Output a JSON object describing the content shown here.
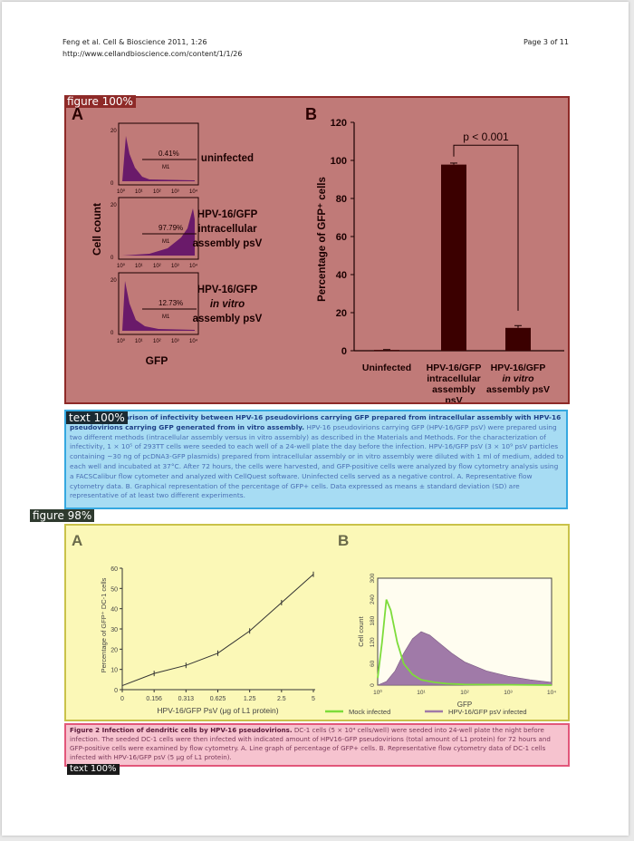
{
  "header": {
    "citation": "Feng et al. Cell & Bioscience 2011, 1:26",
    "url": "http://www.cellandbioscience.com/content/1/1/26",
    "page": "Page 3 of 11"
  },
  "region_labels": {
    "figure1": "figure 100%",
    "text1": "text 100%",
    "figure2": "figure 98%",
    "text2": "text 100%"
  },
  "figure1": {
    "panel_a_letter": "A",
    "panel_b_letter": "B",
    "flow": {
      "ylabel": "Cell count",
      "xlabel": "GFP",
      "ytick": [
        "0",
        "20"
      ],
      "xticks": [
        "10⁰",
        "10¹",
        "10²",
        "10³",
        "10⁴"
      ],
      "gate_label": "M1",
      "histograms": [
        {
          "percent": "0.41%",
          "label_lines": [
            "uninfected"
          ]
        },
        {
          "percent": "97.79%",
          "label_lines": [
            "HPV-16/GFP",
            "intracellular",
            "assembly psV"
          ]
        },
        {
          "percent": "12.73%",
          "label_lines": [
            "HPV-16/GFP",
            "in vitro",
            "assembly psV"
          ]
        }
      ]
    },
    "chart_data": {
      "type": "bar",
      "ylabel": "Percentage of GFP⁺ cells",
      "ylim": [
        0,
        120
      ],
      "yticks": [
        "0",
        "20",
        "40",
        "60",
        "80",
        "100",
        "120"
      ],
      "categories": [
        [
          "Uninfected"
        ],
        [
          "HPV-16/GFP",
          "intracellular",
          "assembly",
          "psV"
        ],
        [
          "HPV-16/GFP",
          "in vitro",
          "assembly psV"
        ]
      ],
      "values": [
        0.4,
        97.8,
        12.0
      ],
      "errors": [
        0.2,
        0.8,
        1.2
      ],
      "annotation": "p < 0.001",
      "bar_color": "#3b0000"
    }
  },
  "text1": {
    "caption_bold": "Figure 1 Comparison of infectivity between HPV-16 pseudovirions carrying GFP prepared from intracellular assembly with HPV-16 pseudovirions carrying GFP generated from in vitro assembly.",
    "caption_body": "HPV-16 pseudovirions carrying GFP (HPV-16/GFP psV) were prepared using two different methods (intracellular assembly versus in vitro assembly) as described in the Materials and Methods. For the characterization of infectivity, 1 × 10⁵ of 293TT cells were seeded to each well of a 24-well plate the day before the infection. HPV-16/GFP psV (3 × 10⁹ psV particles containing ~30 ng of pcDNA3-GFP plasmids) prepared from intracellular assembly or in vitro assembly were diluted with 1 ml of medium, added to each well and incubated at 37°C. After 72 hours, the cells were harvested, and GFP-positive cells were analyzed by flow cytometry analysis using a FACSCalibur flow cytometer and analyzed with CellQuest software. Uninfected cells served as a negative control. A. Representative flow cytometry data. B. Graphical representation of the percentage of GFP+ cells. Data expressed as means ± standard deviation (SD) are representative of at least two different experiments."
  },
  "figure2": {
    "panel_a_letter": "A",
    "panel_b_letter": "B",
    "chart_data": [
      {
        "type": "line",
        "ylabel": "Percentage of GFP⁺ DC-1 cells",
        "xlabel": "HPV-16/GFP PsV (μg of L1 protein)",
        "x_categories": [
          "0",
          "0.156",
          "0.313",
          "0.625",
          "1.25",
          "2.5",
          "5"
        ],
        "yticks": [
          "0",
          "10",
          "20",
          "30",
          "40",
          "50",
          "60"
        ],
        "ylim": [
          0,
          60
        ],
        "values": [
          2,
          8,
          12,
          18,
          29,
          43,
          57
        ]
      },
      {
        "type": "area",
        "ylabel": "Cell count",
        "xlabel": "GFP",
        "yticks": [
          "0",
          "60",
          "120",
          "180",
          "240",
          "300"
        ],
        "xticks": [
          "10⁰",
          "10¹",
          "10²",
          "10³",
          "10⁴"
        ],
        "ylim": [
          0,
          300
        ],
        "series": [
          {
            "name": "Mock infected",
            "color": "#7ddc3a",
            "x": [
              0.0,
              0.1,
              0.2,
              0.3,
              0.45,
              0.6,
              0.8,
              1.0,
              1.3,
              1.6,
              2.0,
              3.0,
              4.0
            ],
            "y": [
              20,
              120,
              240,
              210,
              120,
              60,
              30,
              15,
              8,
              4,
              2,
              1,
              0
            ]
          },
          {
            "name": "HPV-16/GFP psV infected",
            "color": "#a07aa8",
            "x": [
              0.0,
              0.2,
              0.4,
              0.6,
              0.8,
              1.0,
              1.2,
              1.4,
              1.7,
              2.0,
              2.5,
              3.0,
              3.5,
              4.0
            ],
            "y": [
              0,
              10,
              40,
              90,
              130,
              150,
              140,
              120,
              90,
              65,
              40,
              25,
              15,
              8
            ]
          }
        ],
        "legend_position": "bottom"
      }
    ]
  },
  "text2": {
    "caption_bold": "Figure 2 Infection of dendritic cells by HPV-16 pseudovirions.",
    "caption_body": "DC-1 cells (5 × 10⁴ cells/well) were seeded into 24-well plate the night before infection. The seeded DC-1 cells were then infected with indicated amount of HPV16-GFP pseudovirions (total amount of L1 protein) for 72 hours and GFP-positive cells were examined by flow cytometry. A. Line graph of percentage of GFP+ cells. B. Representative flow cytometry data of DC-1 cells infected with HPV-16/GFP psV (5 μg of L1 protein)."
  }
}
